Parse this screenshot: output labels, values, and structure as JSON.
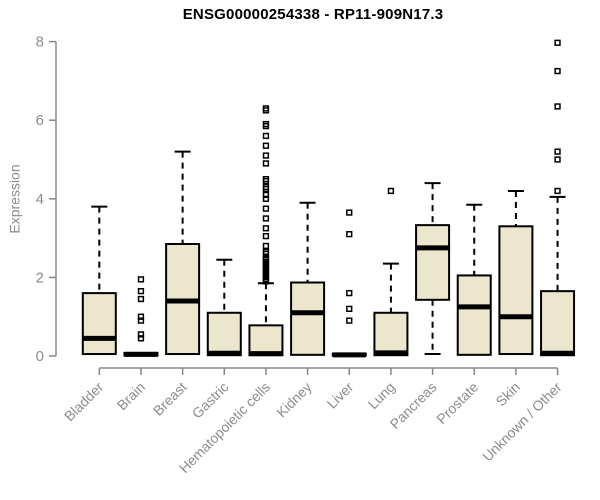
{
  "page": {
    "background": "#ffffff"
  },
  "chart_data": {
    "type": "boxplot",
    "title": "ENSG00000254338 - RP11-909N17.3",
    "ylabel": "Expression",
    "xlabel": "",
    "ylim": [
      0,
      8
    ],
    "yticks": [
      0,
      2,
      4,
      6,
      8
    ],
    "grid": false,
    "legend": null,
    "marker": "open-square",
    "box_fill": "#ece7cc",
    "box_stroke": "#000000",
    "axis_color": "#888888",
    "tick_label_color": "#8c8c8c",
    "title_color": "#000000",
    "categories": [
      {
        "label": "Bladder",
        "whisker_low": 0.05,
        "q1": 0.05,
        "median": 0.45,
        "q3": 1.6,
        "whisker_high": 3.8,
        "outliers": []
      },
      {
        "label": "Brain",
        "whisker_low": 0.0,
        "q1": 0.01,
        "median": 0.04,
        "q3": 0.08,
        "whisker_high": 0.12,
        "outliers": [
          1.95,
          1.65,
          1.45,
          1.0,
          0.9,
          0.55,
          0.45
        ]
      },
      {
        "label": "Breast",
        "whisker_low": 0.05,
        "q1": 0.05,
        "median": 1.4,
        "q3": 2.85,
        "whisker_high": 5.2,
        "outliers": []
      },
      {
        "label": "Gastric",
        "whisker_low": 0.02,
        "q1": 0.02,
        "median": 0.07,
        "q3": 1.1,
        "whisker_high": 2.45,
        "outliers": []
      },
      {
        "label": "Hematopoietic cells",
        "whisker_low": 0.02,
        "q1": 0.02,
        "median": 0.06,
        "q3": 0.78,
        "whisker_high": 1.85,
        "outliers": [
          6.3,
          6.25,
          5.9,
          5.85,
          5.6,
          5.35,
          5.1,
          4.9,
          4.5,
          4.45,
          4.3,
          4.25,
          4.1,
          4.0,
          3.75,
          3.5,
          3.25,
          3.05,
          2.8,
          2.65,
          2.6,
          2.5,
          2.45,
          2.4,
          2.35,
          2.3,
          2.25,
          2.2,
          2.15,
          2.1,
          2.05,
          2.0,
          1.95,
          1.9
        ]
      },
      {
        "label": "Kidney",
        "whisker_low": 0.03,
        "q1": 0.03,
        "median": 1.1,
        "q3": 1.87,
        "whisker_high": 3.9,
        "outliers": []
      },
      {
        "label": "Liver",
        "whisker_low": 0.0,
        "q1": 0.01,
        "median": 0.03,
        "q3": 0.06,
        "whisker_high": 0.1,
        "outliers": [
          3.65,
          3.1,
          1.6,
          1.2,
          0.9
        ]
      },
      {
        "label": "Lung",
        "whisker_low": 0.02,
        "q1": 0.02,
        "median": 0.08,
        "q3": 1.1,
        "whisker_high": 2.35,
        "outliers": [
          4.2
        ]
      },
      {
        "label": "Pancreas",
        "whisker_low": 0.05,
        "q1": 1.43,
        "median": 2.75,
        "q3": 3.33,
        "whisker_high": 4.4,
        "outliers": []
      },
      {
        "label": "Prostate",
        "whisker_low": 0.03,
        "q1": 0.03,
        "median": 1.25,
        "q3": 2.05,
        "whisker_high": 3.85,
        "outliers": []
      },
      {
        "label": "Skin",
        "whisker_low": 0.05,
        "q1": 0.05,
        "median": 1.0,
        "q3": 3.3,
        "whisker_high": 4.2,
        "outliers": []
      },
      {
        "label": "Unknown / Other",
        "whisker_low": 0.02,
        "q1": 0.02,
        "median": 0.07,
        "q3": 1.65,
        "whisker_high": 4.05,
        "outliers": [
          7.97,
          7.25,
          6.35,
          5.2,
          5.0,
          4.2
        ]
      }
    ]
  }
}
